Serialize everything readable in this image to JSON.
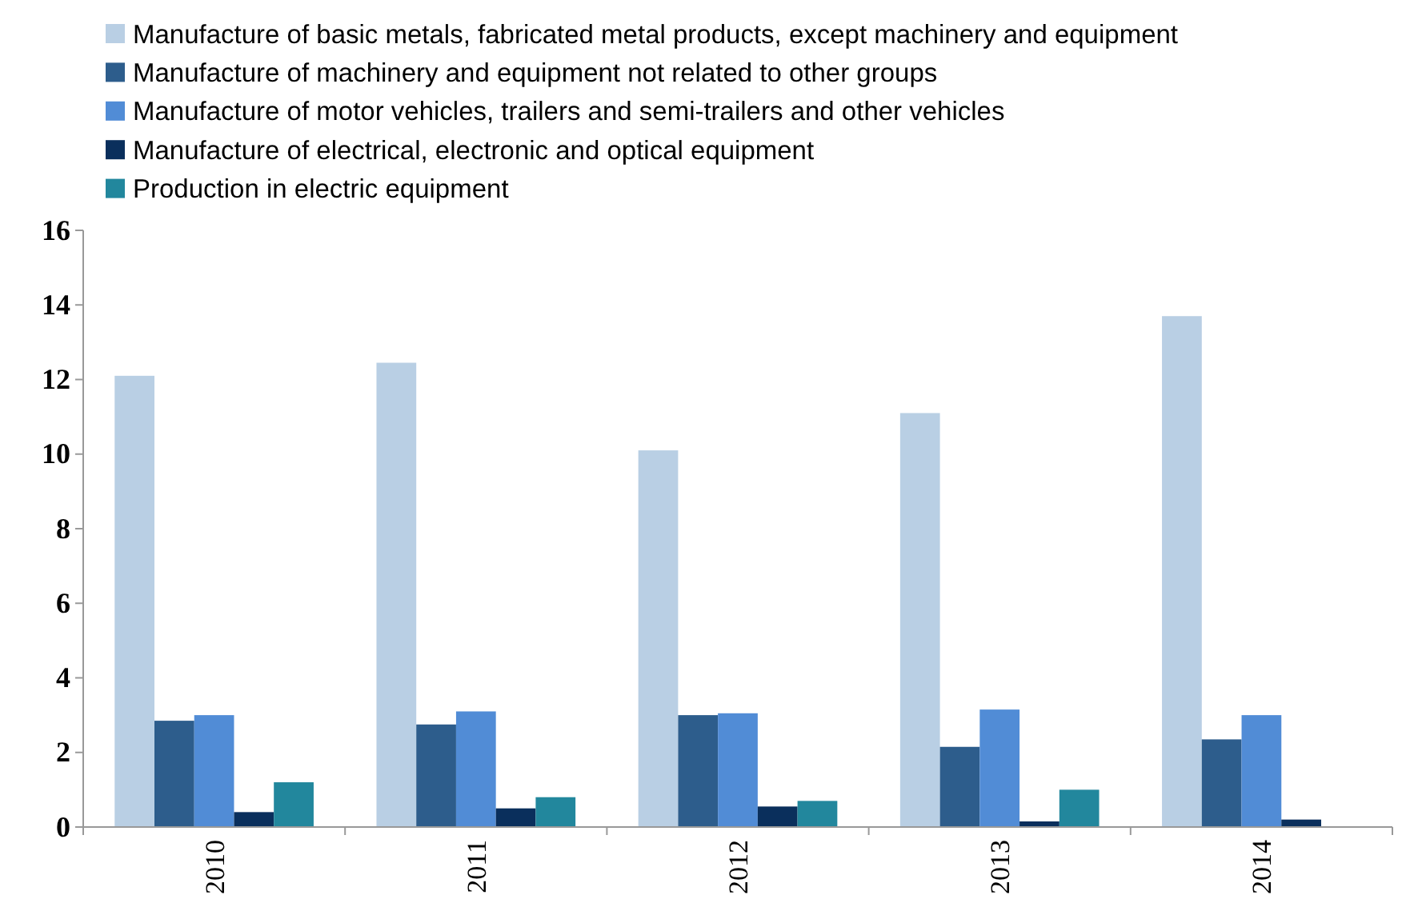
{
  "chart_data": {
    "type": "bar",
    "categories": [
      "2010",
      "2011",
      "2012",
      "2013",
      "2014"
    ],
    "series": [
      {
        "name": "Manufacture of basic metals, fabricated metal products, except machinery and equipment",
        "color": "#b9cfe4",
        "values": [
          12.1,
          12.45,
          10.1,
          11.1,
          13.7
        ]
      },
      {
        "name": "Manufacture of machinery and equipment not related to other groups",
        "color": "#2d5d8c",
        "values": [
          2.85,
          2.75,
          3.0,
          2.15,
          2.35
        ]
      },
      {
        "name": "Manufacture of motor vehicles, trailers and semi-trailers and other vehicles",
        "color": "#518cd6",
        "values": [
          3.0,
          3.1,
          3.05,
          3.15,
          3.0
        ]
      },
      {
        "name": "Manufacture of electrical, electronic and optical equipment",
        "color": "#0a2f5c",
        "values": [
          0.4,
          0.5,
          0.55,
          0.15,
          0.2
        ]
      },
      {
        "name": "Production in electric equipment",
        "color": "#22879d",
        "values": [
          1.2,
          0.8,
          0.7,
          1.0,
          null
        ]
      }
    ],
    "ylim": [
      0,
      16
    ],
    "yticks": [
      0,
      2,
      4,
      6,
      8,
      10,
      12,
      14,
      16
    ],
    "grid": false,
    "legend": "top"
  }
}
